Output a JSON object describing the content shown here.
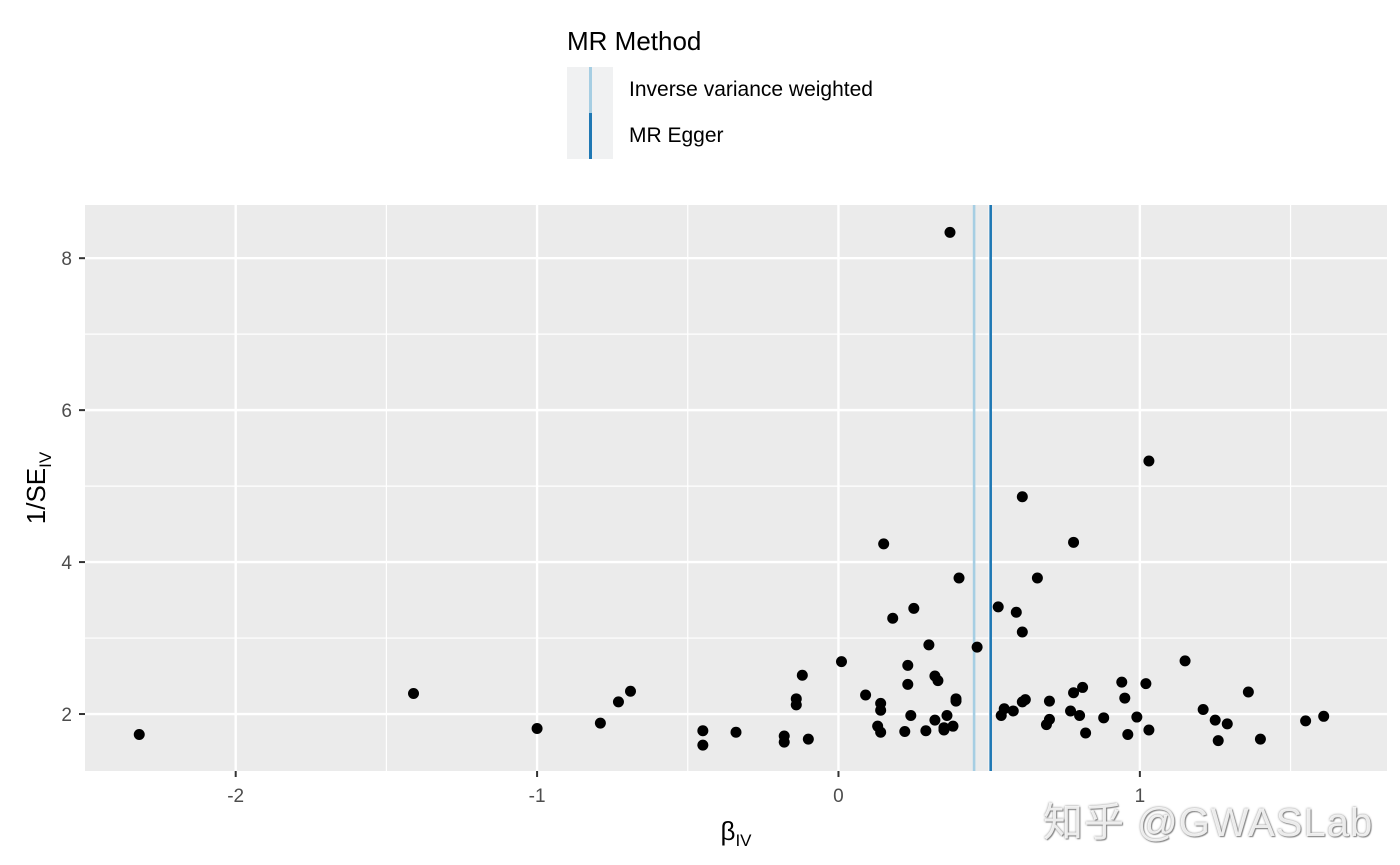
{
  "legend": {
    "title": "MR Method",
    "items": [
      {
        "label": "Inverse variance weighted",
        "color": "#a6cee3"
      },
      {
        "label": "MR Egger",
        "color": "#1f78b4"
      }
    ]
  },
  "watermark": "知乎 @GWASLab",
  "chart_data": {
    "type": "scatter",
    "xlabel": "β",
    "xlabel_sub": "IV",
    "ylabel": "1/SE",
    "ylabel_sub": "IV",
    "xlim": [
      -2.5,
      1.82
    ],
    "ylim": [
      1.25,
      8.7
    ],
    "xticks": [
      -2,
      -1,
      0,
      1
    ],
    "yticks": [
      2,
      4,
      6,
      8
    ],
    "grid": true,
    "legend_position": "top",
    "panel_color": "#ebebeb",
    "point_color": "#000000",
    "vlines": [
      {
        "name": "Inverse variance weighted",
        "x": 0.45,
        "color": "#a6cee3"
      },
      {
        "name": "MR Egger",
        "x": 0.505,
        "color": "#1f78b4"
      }
    ],
    "points": [
      [
        -2.32,
        1.73
      ],
      [
        -1.41,
        2.27
      ],
      [
        -1.0,
        1.81
      ],
      [
        -0.79,
        1.88
      ],
      [
        -0.73,
        2.16
      ],
      [
        -0.69,
        2.3
      ],
      [
        -0.45,
        1.78
      ],
      [
        -0.45,
        1.59
      ],
      [
        -0.34,
        1.76
      ],
      [
        -0.18,
        1.71
      ],
      [
        -0.18,
        1.63
      ],
      [
        -0.14,
        2.12
      ],
      [
        -0.14,
        2.2
      ],
      [
        -0.12,
        2.51
      ],
      [
        -0.1,
        1.67
      ],
      [
        0.01,
        2.69
      ],
      [
        0.09,
        2.25
      ],
      [
        0.13,
        1.84
      ],
      [
        0.14,
        2.14
      ],
      [
        0.14,
        2.05
      ],
      [
        0.14,
        1.76
      ],
      [
        0.15,
        4.24
      ],
      [
        0.18,
        3.26
      ],
      [
        0.23,
        2.64
      ],
      [
        0.23,
        2.39
      ],
      [
        0.22,
        1.77
      ],
      [
        0.24,
        1.98
      ],
      [
        0.25,
        3.39
      ],
      [
        0.3,
        2.91
      ],
      [
        0.29,
        1.78
      ],
      [
        0.32,
        1.92
      ],
      [
        0.32,
        2.5
      ],
      [
        0.33,
        2.44
      ],
      [
        0.35,
        1.82
      ],
      [
        0.35,
        1.79
      ],
      [
        0.36,
        1.98
      ],
      [
        0.37,
        8.34
      ],
      [
        0.38,
        1.84
      ],
      [
        0.39,
        2.17
      ],
      [
        0.39,
        2.2
      ],
      [
        0.4,
        3.79
      ],
      [
        0.46,
        2.88
      ],
      [
        0.53,
        3.41
      ],
      [
        0.54,
        1.98
      ],
      [
        0.55,
        2.07
      ],
      [
        0.58,
        2.04
      ],
      [
        0.59,
        3.34
      ],
      [
        0.61,
        3.08
      ],
      [
        0.61,
        4.86
      ],
      [
        0.61,
        2.16
      ],
      [
        0.62,
        2.19
      ],
      [
        0.66,
        3.79
      ],
      [
        0.69,
        1.86
      ],
      [
        0.7,
        2.17
      ],
      [
        0.7,
        1.93
      ],
      [
        0.77,
        2.04
      ],
      [
        0.78,
        4.26
      ],
      [
        0.78,
        2.28
      ],
      [
        0.8,
        1.98
      ],
      [
        0.81,
        2.35
      ],
      [
        0.82,
        1.75
      ],
      [
        0.88,
        1.95
      ],
      [
        0.94,
        2.42
      ],
      [
        0.95,
        2.21
      ],
      [
        0.96,
        1.73
      ],
      [
        0.99,
        1.96
      ],
      [
        1.02,
        2.4
      ],
      [
        1.03,
        5.33
      ],
      [
        1.03,
        1.79
      ],
      [
        1.15,
        2.7
      ],
      [
        1.21,
        2.06
      ],
      [
        1.25,
        1.92
      ],
      [
        1.26,
        1.65
      ],
      [
        1.29,
        1.87
      ],
      [
        1.36,
        2.29
      ],
      [
        1.4,
        1.67
      ],
      [
        1.55,
        1.91
      ],
      [
        1.61,
        1.97
      ]
    ]
  }
}
